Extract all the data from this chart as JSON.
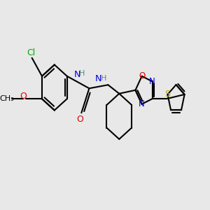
{
  "bg_color": "#e8e8e8",
  "fig_size": [
    3.0,
    3.0
  ],
  "dpi": 100,
  "xlim": [
    -0.5,
    8.5
  ],
  "ylim": [
    -1.5,
    4.5
  ],
  "bond_lw": 1.5,
  "black": "#000000",
  "blue": "#0000dd",
  "red": "#dd0000",
  "green": "#00aa00",
  "gray": "#558888",
  "yellow": "#aaaa00"
}
